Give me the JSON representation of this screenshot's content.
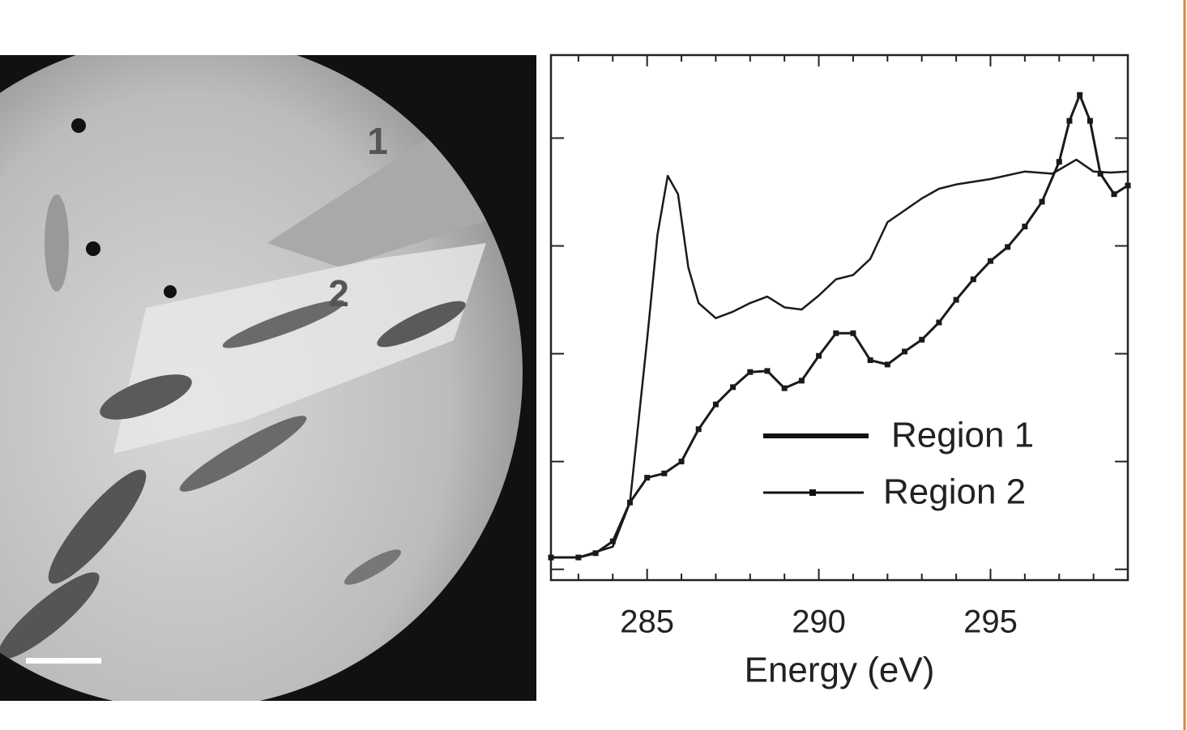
{
  "image": {
    "labels": [
      "1",
      "2"
    ]
  },
  "chart_data": {
    "type": "line",
    "x_label": "Energy (eV)",
    "xlim": [
      282.2,
      299
    ],
    "xticks": [
      285,
      290,
      295
    ],
    "xminorticks": [
      283,
      284,
      286,
      287,
      288,
      289,
      291,
      292,
      293,
      294,
      296,
      297,
      298,
      299
    ],
    "ylim": [
      -0.1,
      4.77
    ],
    "yticks": [
      0,
      1,
      2,
      3,
      4
    ],
    "series": [
      {
        "name": "Region 1",
        "color": "#1a1a1a",
        "marker": false,
        "x": [
          282.2,
          283,
          284,
          284.5,
          285,
          285.3,
          285.6,
          285.9,
          286.2,
          286.5,
          287,
          287.5,
          288,
          288.5,
          289,
          289.5,
          290,
          290.5,
          291,
          291.5,
          292,
          292.5,
          293,
          293.5,
          294,
          295,
          296,
          296.8,
          297.5,
          298,
          298.5,
          299
        ],
        "values": [
          0.11,
          0.11,
          0.21,
          0.62,
          2.13,
          3.1,
          3.65,
          3.48,
          2.8,
          2.47,
          2.33,
          2.39,
          2.47,
          2.53,
          2.43,
          2.41,
          2.54,
          2.69,
          2.73,
          2.88,
          3.22,
          3.33,
          3.44,
          3.53,
          3.57,
          3.62,
          3.69,
          3.67,
          3.8,
          3.69,
          3.68,
          3.69
        ]
      },
      {
        "name": "Region 2",
        "color": "#1a1a1a",
        "marker": true,
        "x": [
          282.2,
          283,
          283.5,
          284,
          284.5,
          285,
          285.5,
          286,
          286.5,
          287,
          287.5,
          288,
          288.5,
          289,
          289.5,
          290,
          290.5,
          291,
          291.5,
          292,
          292.5,
          293,
          293.5,
          294,
          294.5,
          295,
          295.5,
          296,
          296.5,
          297,
          297.3,
          297.6,
          297.9,
          298.2,
          298.6,
          299
        ],
        "values": [
          0.11,
          0.11,
          0.15,
          0.26,
          0.62,
          0.85,
          0.89,
          1.0,
          1.3,
          1.53,
          1.69,
          1.83,
          1.84,
          1.68,
          1.75,
          1.98,
          2.19,
          2.19,
          1.94,
          1.9,
          2.02,
          2.13,
          2.29,
          2.5,
          2.69,
          2.86,
          2.99,
          3.18,
          3.41,
          3.78,
          4.16,
          4.4,
          4.16,
          3.67,
          3.48,
          3.56
        ]
      }
    ]
  }
}
